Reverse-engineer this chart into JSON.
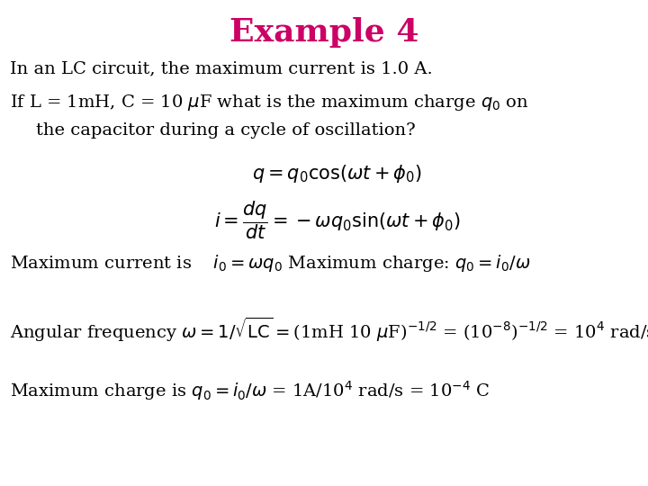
{
  "title": "Example 4",
  "title_color": "#CC0066",
  "title_fontsize": 26,
  "bg_color": "#FFFFFF",
  "text_color": "#000000",
  "body_fontsize": 14,
  "fig_width": 7.2,
  "fig_height": 5.4,
  "dpi": 100
}
